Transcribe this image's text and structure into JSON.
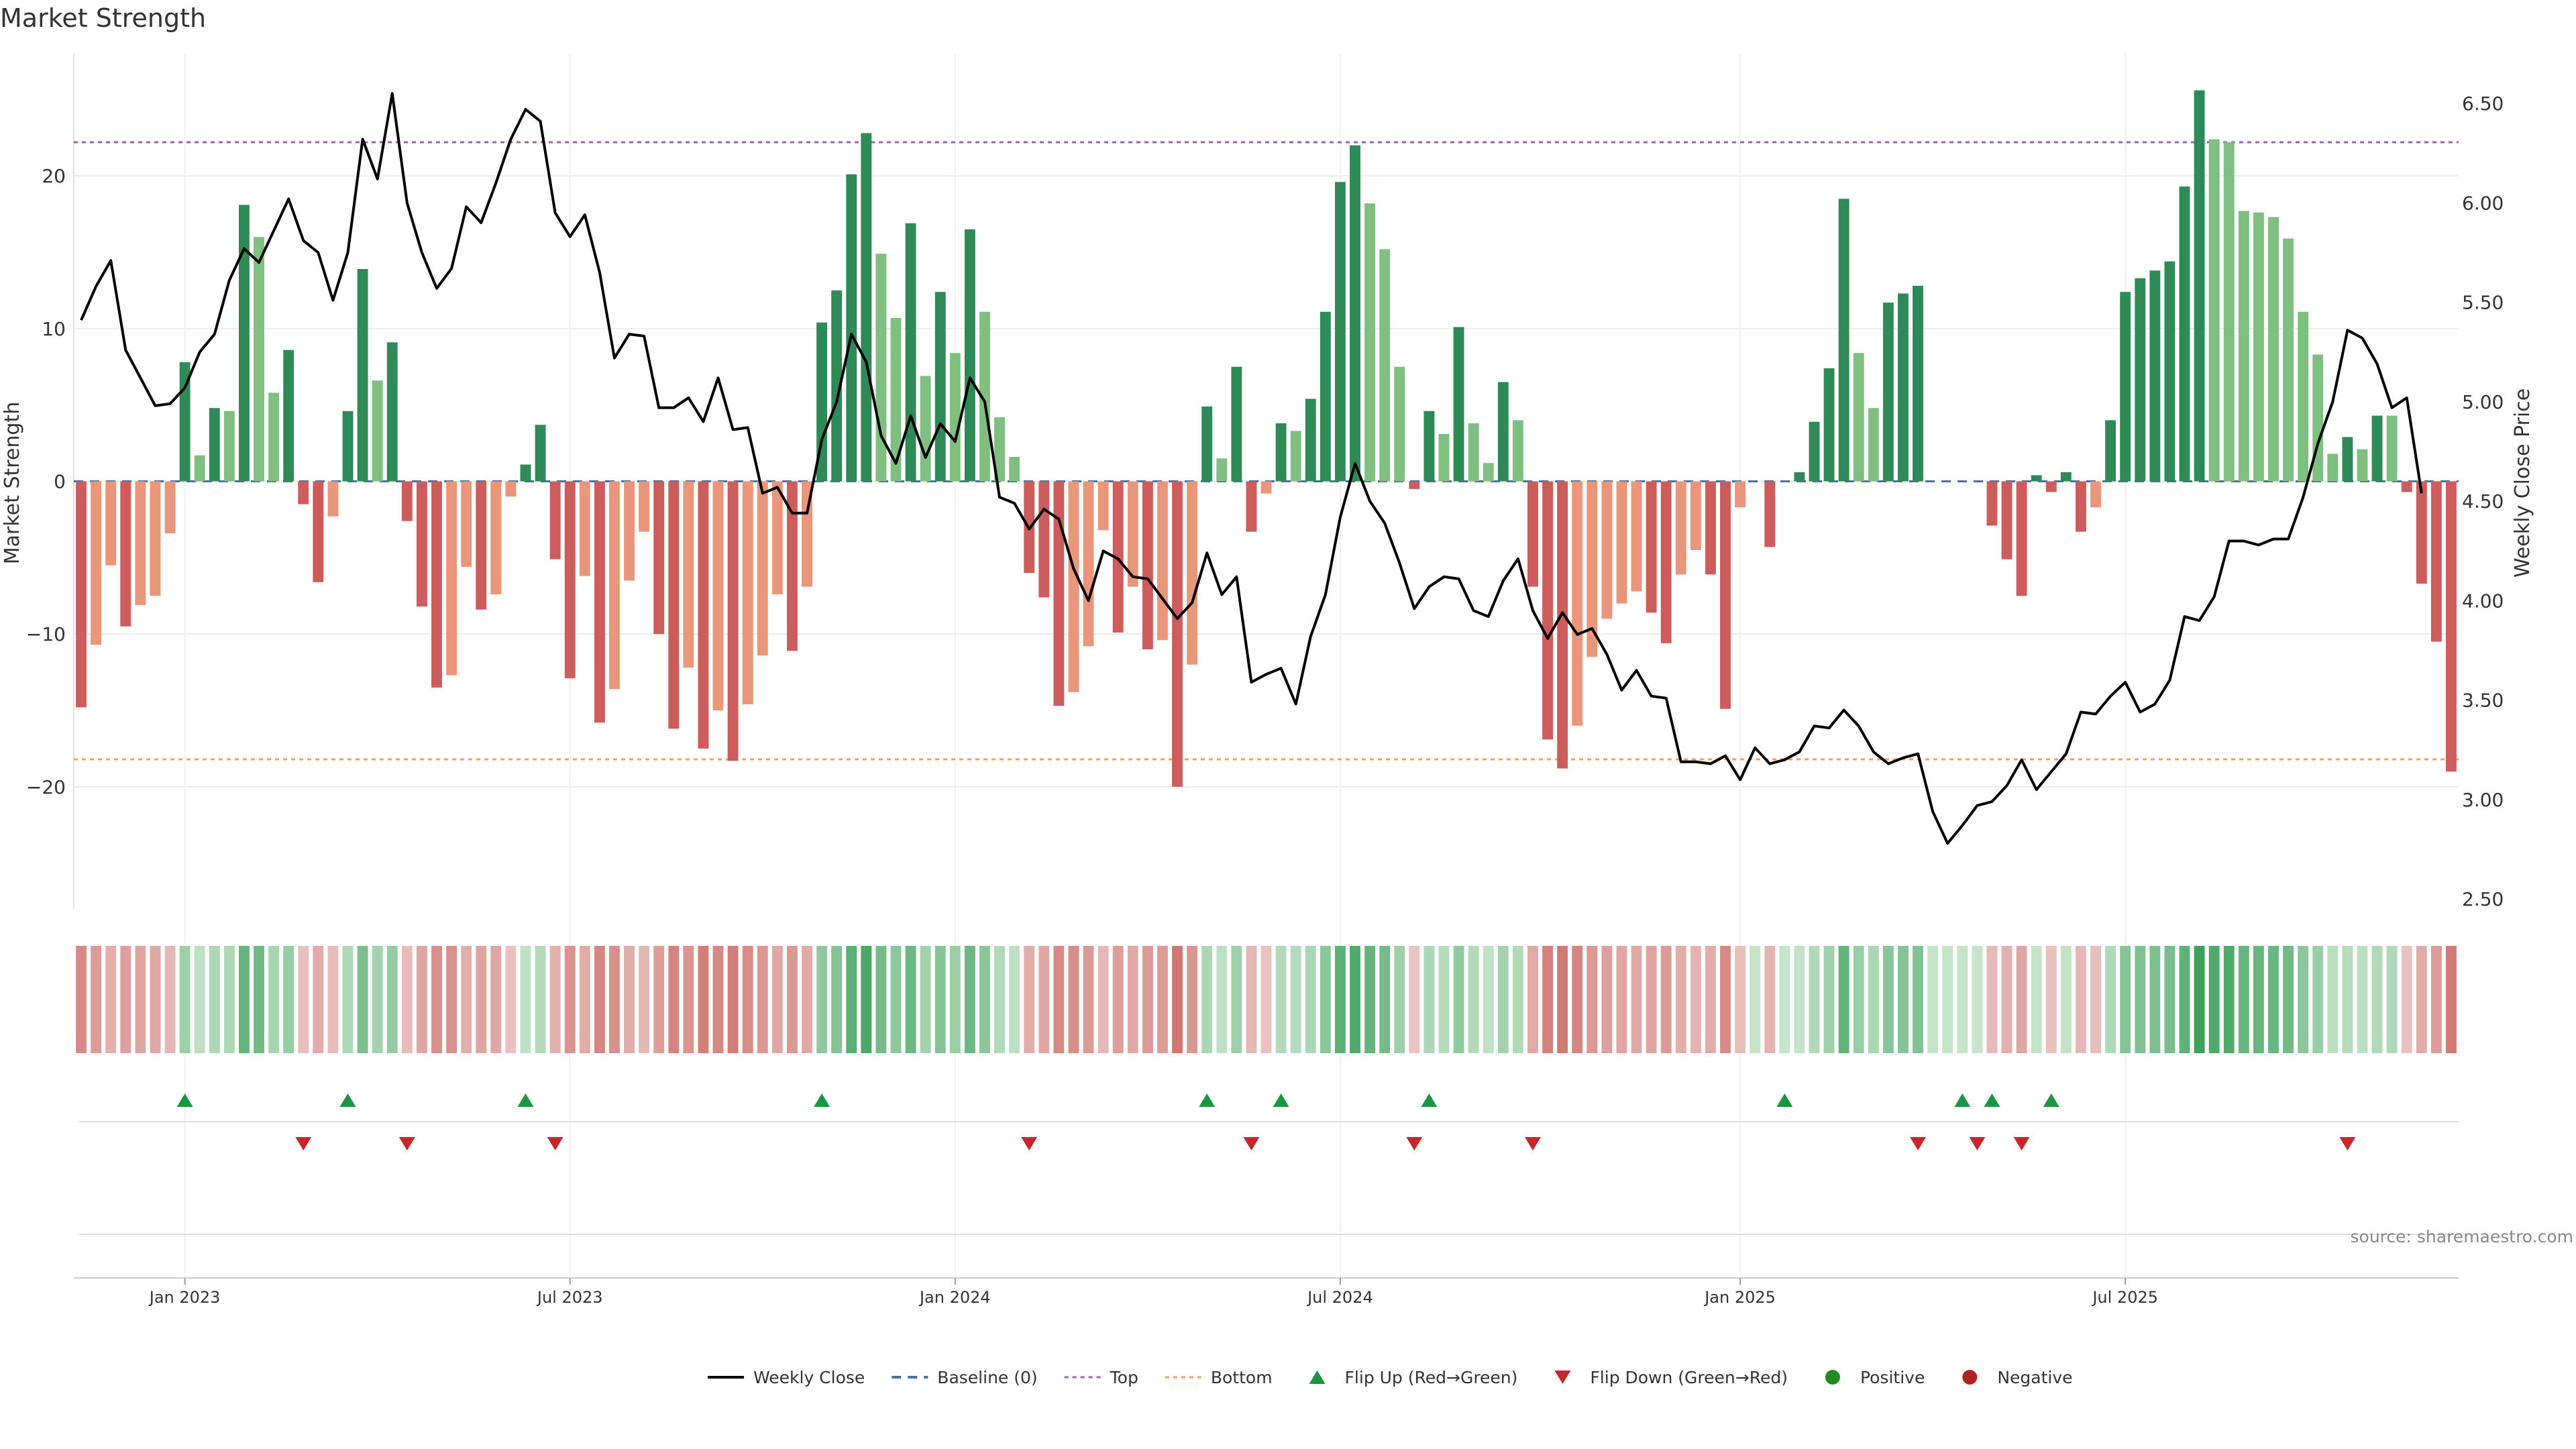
{
  "chart_data": {
    "type": "bar",
    "title": "Market Strength",
    "ylabel_left": "Market Strength",
    "ylabel_right": "Weekly Close Price",
    "ylim_left": [
      -28,
      28
    ],
    "ylim_right": [
      2.45,
      6.75
    ],
    "left_ticks": [
      20,
      10,
      0,
      -10,
      -20
    ],
    "left_tick_labels": [
      "20",
      "10",
      "0",
      "−10",
      "−20"
    ],
    "right_ticks": [
      6.5,
      6.0,
      5.5,
      5.0,
      4.5,
      4.0,
      3.5,
      3.0,
      2.5
    ],
    "right_tick_labels": [
      "6.50",
      "6.00",
      "5.50",
      "5.00",
      "4.50",
      "4.00",
      "3.50",
      "3.00",
      "2.50"
    ],
    "x_tick_labels": [
      "Jan 2023",
      "Jul 2023",
      "Jan 2024",
      "Jul 2024",
      "Jan 2025",
      "Jul 2025"
    ],
    "x_tick_week_index": [
      7,
      33,
      59,
      85,
      112,
      138
    ],
    "top_level": 22.2,
    "bottom_level": -18.2,
    "source_text": "source: sharemaestro.com",
    "colors": {
      "strong_green": "#2e8b57",
      "light_green": "#7fbf7f",
      "strong_red": "#cd5c5c",
      "light_red": "#e9967a",
      "price_line": "#000000",
      "top_line": "#a05cbf",
      "bottom_line": "#f0a060",
      "baseline": "#4a6fa5",
      "flip_up": "#1a9641",
      "flip_down": "#c8262b",
      "positive": "#228b22",
      "negative": "#b22222"
    },
    "series": [
      {
        "name": "Market Strength",
        "values": [
          -14.8,
          -10.7,
          -5.5,
          -9.5,
          -8.1,
          -7.5,
          -3.4,
          7.8,
          1.7,
          4.8,
          4.6,
          18.1,
          16.0,
          5.8,
          8.6,
          -1.5,
          -6.6,
          -2.3,
          4.6,
          13.9,
          6.6,
          9.1,
          -2.6,
          -8.2,
          -13.5,
          -12.7,
          -5.6,
          -8.4,
          -7.4,
          -1.0,
          1.1,
          3.7,
          -5.1,
          -12.9,
          -6.2,
          -15.8,
          -13.6,
          -6.5,
          -3.3,
          -10.0,
          -16.2,
          -12.2,
          -17.5,
          -15.0,
          -18.3,
          -14.6,
          -11.4,
          -7.4,
          -11.1,
          -6.9,
          10.4,
          12.5,
          20.1,
          22.8,
          14.9,
          10.7,
          16.9,
          6.9,
          12.4,
          8.4,
          16.5,
          11.1,
          4.2,
          1.6,
          -6.0,
          -7.6,
          -14.7,
          -13.8,
          -10.8,
          -3.2,
          -9.9,
          -6.9,
          -11.0,
          -10.4,
          -20.0,
          -12.0,
          4.9,
          1.5,
          7.5,
          -3.3,
          -0.8,
          3.8,
          3.3,
          5.4,
          11.1,
          19.6,
          22.0,
          18.2,
          15.2,
          7.5,
          -0.5,
          4.6,
          3.1,
          10.1,
          3.8,
          1.2,
          6.5,
          4.0,
          -6.9,
          -16.9,
          -18.8,
          -16.0,
          -11.5,
          -9.0,
          -8.0,
          -7.2,
          -8.6,
          -10.6,
          -6.1,
          -4.5,
          -6.1,
          -14.9,
          -1.7,
          0.0,
          -4.3,
          0.0,
          0.6,
          3.9,
          7.4,
          18.5,
          8.4,
          4.8,
          11.7,
          12.3,
          12.8,
          0.0,
          0.0,
          0.0,
          0.0,
          -2.9,
          -5.1,
          -7.5,
          0.4,
          -0.7,
          0.6,
          -3.3,
          -1.7,
          4.0,
          12.4,
          13.3,
          13.8,
          14.4,
          19.3,
          25.6,
          22.4,
          22.2,
          17.7,
          17.6,
          17.3,
          15.9,
          11.1,
          8.3,
          1.8,
          2.9,
          2.1,
          4.3,
          4.3,
          -0.7,
          -6.7,
          -10.5,
          -19.0
        ]
      },
      {
        "name": "Weekly Close",
        "values": [
          5.41,
          5.58,
          5.71,
          5.26,
          5.12,
          4.98,
          4.99,
          5.07,
          5.25,
          5.34,
          5.61,
          5.77,
          5.7,
          5.86,
          6.02,
          5.81,
          5.75,
          5.51,
          5.75,
          6.32,
          6.12,
          6.55,
          6.0,
          5.75,
          5.57,
          5.67,
          5.98,
          5.9,
          6.1,
          6.32,
          6.47,
          6.41,
          5.95,
          5.83,
          5.94,
          5.65,
          5.22,
          5.34,
          5.33,
          4.97,
          4.97,
          5.02,
          4.9,
          5.12,
          4.86,
          4.87,
          4.54,
          4.57,
          4.44,
          4.44,
          4.81,
          5.0,
          5.34,
          5.2,
          4.83,
          4.69,
          4.93,
          4.72,
          4.89,
          4.8,
          5.12,
          5.0,
          4.52,
          4.49,
          4.36,
          4.46,
          4.41,
          4.16,
          4.0,
          4.25,
          4.21,
          4.12,
          4.11,
          4.01,
          3.91,
          3.99,
          4.24,
          4.03,
          4.12,
          3.59,
          3.63,
          3.66,
          3.48,
          3.82,
          4.03,
          4.42,
          4.69,
          4.5,
          4.39,
          4.19,
          3.96,
          4.07,
          4.12,
          4.11,
          3.95,
          3.92,
          4.1,
          4.21,
          3.95,
          3.81,
          3.94,
          3.83,
          3.86,
          3.73,
          3.55,
          3.65,
          3.52,
          3.51,
          3.19,
          3.19,
          3.18,
          3.22,
          3.1,
          3.26,
          3.18,
          3.2,
          3.24,
          3.37,
          3.36,
          3.45,
          3.37,
          3.24,
          3.18,
          3.21,
          3.23,
          2.94,
          2.78,
          2.87,
          2.97,
          2.99,
          3.07,
          3.2,
          3.05,
          3.14,
          3.23,
          3.44,
          3.43,
          3.52,
          3.59,
          3.44,
          3.48,
          3.6,
          3.92,
          3.9,
          4.02,
          4.3,
          4.3,
          4.28,
          4.31,
          4.31,
          4.52,
          4.79,
          5.0,
          5.36,
          5.32,
          5.19,
          4.97,
          5.02,
          4.54
        ]
      }
    ],
    "flip_up_weeks": [
      7,
      18,
      30,
      50,
      76,
      81,
      91,
      115,
      127,
      129,
      133
    ],
    "flip_down_weeks": [
      15,
      22,
      32,
      64,
      79,
      90,
      98,
      124,
      128,
      131,
      153
    ],
    "legend": [
      {
        "key": "weekly_close",
        "label": "Weekly Close"
      },
      {
        "key": "baseline",
        "label": "Baseline (0)"
      },
      {
        "key": "top",
        "label": "Top"
      },
      {
        "key": "bottom",
        "label": "Bottom"
      },
      {
        "key": "flip_up",
        "label": "Flip Up (Red→Green)"
      },
      {
        "key": "flip_down",
        "label": "Flip Down (Green→Red)"
      },
      {
        "key": "positive",
        "label": "Positive"
      },
      {
        "key": "negative",
        "label": "Negative"
      }
    ]
  }
}
